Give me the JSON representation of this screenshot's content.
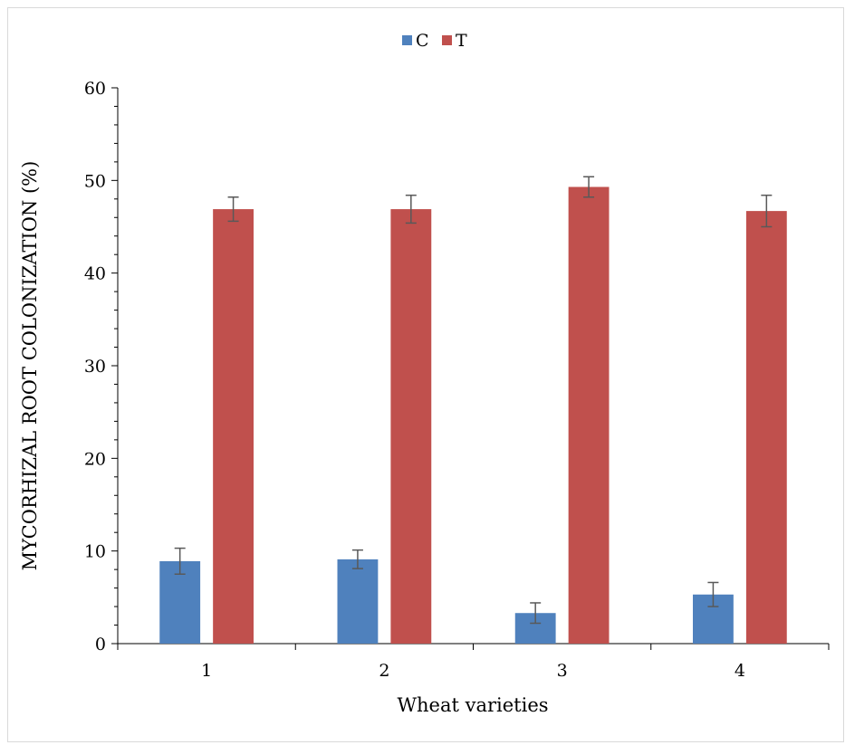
{
  "chart_data": {
    "type": "bar",
    "title": "",
    "xlabel": "Wheat varieties",
    "ylabel": "MYCORHIZAL ROOT COLONIZATION (%)",
    "categories": [
      "1",
      "2",
      "3",
      "4"
    ],
    "ylim": [
      0,
      60
    ],
    "yticks": [
      "0",
      "10",
      "20",
      "30",
      "40",
      "50",
      "60"
    ],
    "series": [
      {
        "name": "C",
        "color": "#4f81bd",
        "values": [
          8.9,
          9.1,
          3.3,
          5.3
        ],
        "errors": [
          1.4,
          1.0,
          1.1,
          1.3
        ]
      },
      {
        "name": "T",
        "color": "#c0504d",
        "values": [
          46.9,
          46.9,
          49.3,
          46.7
        ],
        "errors": [
          1.3,
          1.5,
          1.1,
          1.7
        ]
      }
    ],
    "legend": "top-center",
    "grid": false,
    "error_bar_color": "#595959"
  }
}
